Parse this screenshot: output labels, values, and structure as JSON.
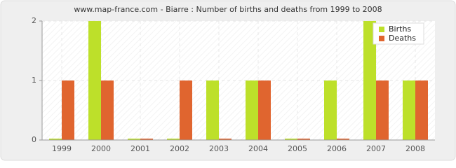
{
  "chart_data": {
    "type": "bar",
    "title": "www.map-france.com - Biarre : Number of births and deaths from 1999 to 2008",
    "categories": [
      "1999",
      "2000",
      "2001",
      "2002",
      "2003",
      "2004",
      "2005",
      "2006",
      "2007",
      "2008"
    ],
    "series": [
      {
        "name": "Births",
        "color": "#bde02a",
        "values": [
          0,
          2,
          0,
          0,
          1,
          1,
          0,
          1,
          2,
          1
        ]
      },
      {
        "name": "Deaths",
        "color": "#e0652f",
        "values": [
          1,
          1,
          0,
          1,
          0,
          1,
          0,
          0,
          1,
          1
        ]
      }
    ],
    "ylim": [
      0,
      2
    ],
    "yticks": [
      0,
      1,
      2
    ],
    "grid": true,
    "legend": "top-right"
  }
}
